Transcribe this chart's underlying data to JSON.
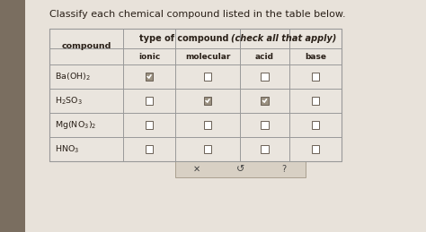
{
  "title": "Classify each chemical compound listed in the table below.",
  "title_fontsize": 8.0,
  "header_row1_normal": "type of compound ",
  "header_row1_italic": "(check all that apply)",
  "header_row2": [
    "ionic",
    "molecular",
    "acid",
    "base"
  ],
  "compound_col_header": "compound",
  "compounds_latex": [
    "Ba(OH)$_2$",
    "H$_2$SO$_3$",
    "Mg(NO$_3$)$_2$",
    "HNO$_3$"
  ],
  "checkmarks": [
    [
      true,
      false,
      false,
      false
    ],
    [
      false,
      true,
      true,
      false
    ],
    [
      false,
      false,
      false,
      false
    ],
    [
      false,
      false,
      false,
      false
    ]
  ],
  "fig_bg": "#c8bfb0",
  "left_strip_color": "#7a6e60",
  "page_bg": "#e8e2da",
  "table_bg": "#eae5de",
  "cell_bg": "#eceae4",
  "border_color": "#999999",
  "text_color": "#2a2018",
  "check_fill": "#9a9080",
  "check_border": "#6a6055",
  "bottom_bar_bg": "#d8d0c4",
  "bottom_bar_border": "#aaa090"
}
